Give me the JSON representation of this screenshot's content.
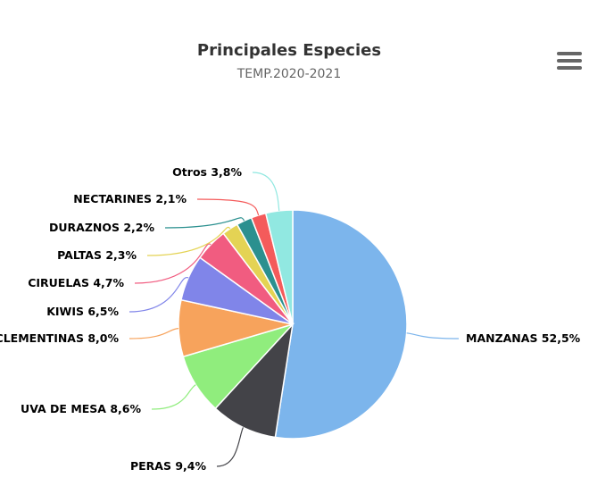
{
  "chart_data": {
    "type": "pie",
    "title": "Principales Especies",
    "subtitle": "TEMP.2020-2021",
    "slices": [
      {
        "name": "MANZANAS",
        "value": 52.5,
        "label": "MANZANAS 52,5%",
        "color": "#7cb5ec"
      },
      {
        "name": "PERAS",
        "value": 9.4,
        "label": "PERAS 9,4%",
        "color": "#434348"
      },
      {
        "name": "UVA DE MESA",
        "value": 8.6,
        "label": "UVA DE MESA 8,6%",
        "color": "#90ed7d"
      },
      {
        "name": "CLEMENTINAS",
        "value": 8.0,
        "label": "CLEMENTINAS 8,0%",
        "color": "#f7a35c"
      },
      {
        "name": "KIWIS",
        "value": 6.5,
        "label": "KIWIS 6,5%",
        "color": "#8085e9"
      },
      {
        "name": "CIRUELAS",
        "value": 4.7,
        "label": "CIRUELAS 4,7%",
        "color": "#f15c80"
      },
      {
        "name": "PALTAS",
        "value": 2.3,
        "label": "PALTAS 2,3%",
        "color": "#e4d354"
      },
      {
        "name": "DURAZNOS",
        "value": 2.2,
        "label": "DURAZNOS 2,2%",
        "color": "#2b908f"
      },
      {
        "name": "NECTARINES",
        "value": 2.1,
        "label": "NECTARINES 2,1%",
        "color": "#f45b5b"
      },
      {
        "name": "Otros",
        "value": 3.8,
        "label": "Otros 3,8%",
        "color": "#91e8e1"
      }
    ]
  },
  "menu": {
    "icon": "hamburger-menu-icon"
  }
}
